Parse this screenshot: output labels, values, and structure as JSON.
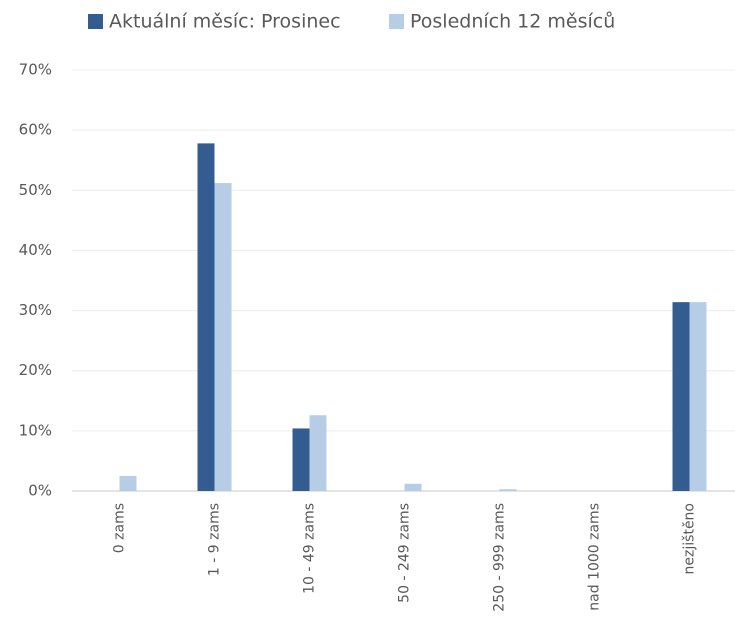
{
  "chart_data": {
    "type": "bar",
    "categories": [
      "0 zams",
      "1 - 9 zams",
      "10 - 49 zams",
      "50 - 249 zams",
      "250 - 999 zams",
      "nad 1000 zams",
      "nezjištěno"
    ],
    "series": [
      {
        "name": "Aktuální měsíc: Prosinec",
        "color": "#335d91",
        "values": [
          0,
          57.8,
          10.4,
          0,
          0,
          0,
          31.4
        ]
      },
      {
        "name": "Posledních 12 měsíců",
        "color": "#b7cde6",
        "values": [
          2.5,
          51.2,
          12.6,
          1.2,
          0.3,
          0,
          31.4
        ]
      }
    ],
    "ylim": [
      0,
      70
    ],
    "yticks": [
      {
        "value": 0,
        "label": "0%"
      },
      {
        "value": 10,
        "label": "10%"
      },
      {
        "value": 20,
        "label": "20%"
      },
      {
        "value": 30,
        "label": "30%"
      },
      {
        "value": 40,
        "label": "40%"
      },
      {
        "value": 50,
        "label": "50%"
      },
      {
        "value": 60,
        "label": "60%"
      },
      {
        "value": 70,
        "label": "70%"
      }
    ],
    "grid": true,
    "legend": "top"
  }
}
